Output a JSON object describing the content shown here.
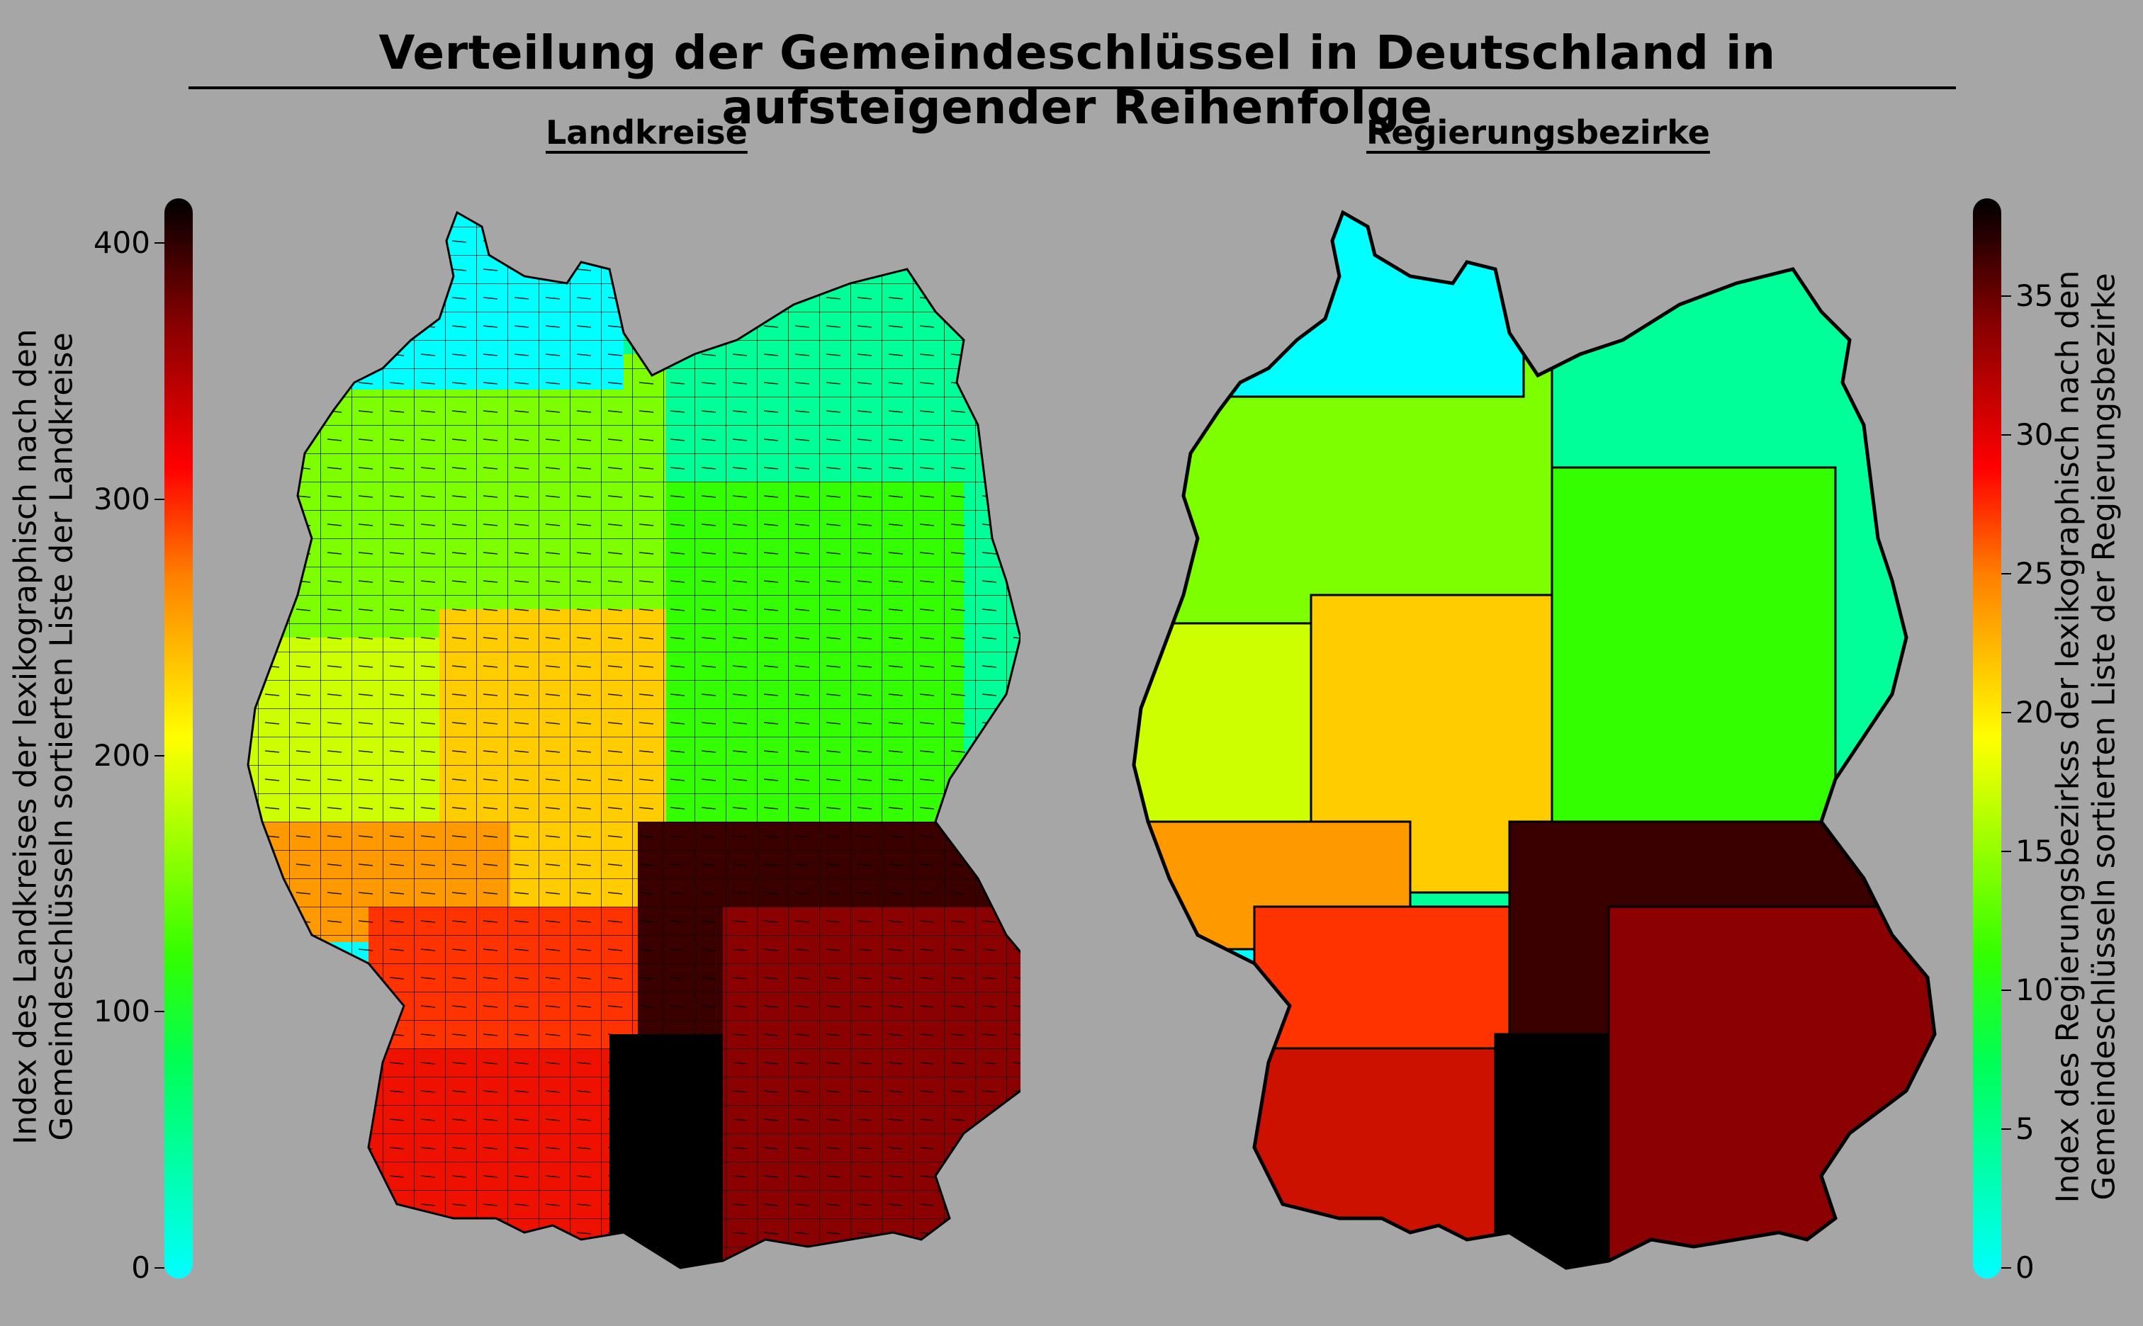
{
  "title": "Verteilung der Gemeindeschlüssel in Deutschland in aufsteigender Reihenfolge",
  "left": {
    "subtitle": "Landkreise",
    "colorbar": {
      "min": 0,
      "max": 412,
      "ticks": [
        "0",
        "100",
        "200",
        "300",
        "400"
      ],
      "label_line1": "Index des Landkreises der lexikographisch nach den",
      "label_line2": "Gemeindeschlüsseln sortierten Liste der Landkreise"
    }
  },
  "right": {
    "subtitle": "Regierungsbezirke",
    "colorbar": {
      "min": 0,
      "max": 38,
      "ticks": [
        "0",
        "5",
        "10",
        "15",
        "20",
        "25",
        "30",
        "35"
      ],
      "label_line1": "Index des Regierungsbezirkss der lexikographisch nach den",
      "label_line2": "Gemeindeschlüsseln sortierten Liste der Regierungsbezirke"
    }
  },
  "colors": {
    "background": "#a6a6a6",
    "schleswig_holstein": "#00ffff",
    "northeast": "#00ff99",
    "lower_saxony": "#7dff00",
    "central": "#33ff00",
    "nrw": "#ccff00",
    "hesse": "#ffcc00",
    "rhineland": "#ff9900",
    "saarland": "#00ffff",
    "baden_wuerttemberg": "#ff2200",
    "bavaria_north": "#3a0000",
    "bavaria_south": "#8b0000",
    "swabia": "#000000"
  }
}
